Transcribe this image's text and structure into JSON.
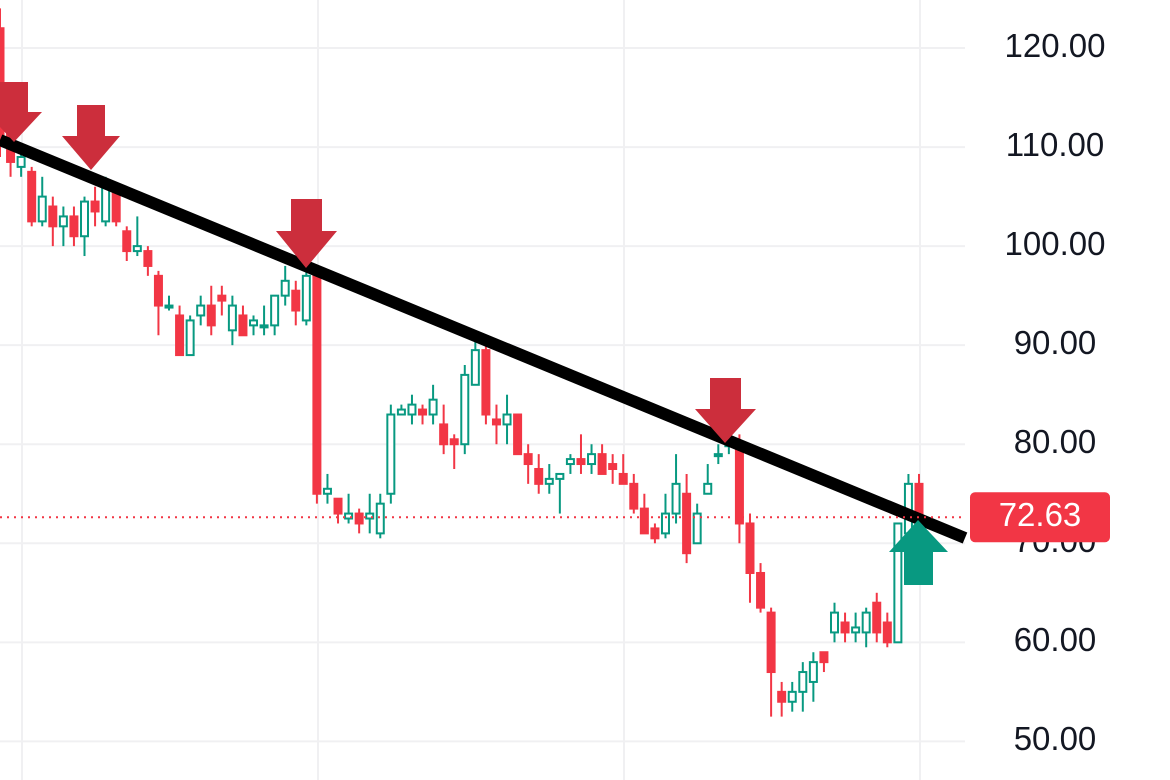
{
  "chart_data": {
    "type": "candlestick",
    "open": [
      122,
      112,
      108,
      107.5,
      102.5,
      104,
      102,
      103,
      101,
      104.5,
      102.5,
      105.5,
      101.5,
      99.5,
      99.5,
      97,
      94,
      93,
      89,
      93,
      94,
      95,
      91.5,
      93,
      92,
      92,
      92,
      95,
      95.5,
      92.5,
      97,
      75,
      74.5,
      72.5,
      73,
      72.5,
      71,
      75,
      83,
      83,
      83.5,
      83,
      82,
      80.5,
      80,
      86,
      89.5,
      82.5,
      82,
      83,
      79,
      77.5,
      76,
      76.5,
      78,
      78.5,
      78,
      79,
      78,
      77,
      76,
      73.5,
      71.5,
      71,
      73,
      75,
      70,
      75,
      79,
      80,
      80,
      72,
      67,
      63,
      55,
      54,
      55,
      56,
      59,
      61,
      62,
      61,
      61,
      64,
      62,
      60,
      71,
      76
    ],
    "high": [
      124,
      113,
      110,
      108,
      107,
      105,
      104,
      104,
      105,
      106,
      107,
      106,
      102,
      103,
      100,
      97.5,
      95,
      94,
      93,
      95,
      96,
      96,
      95,
      94,
      93,
      94,
      95,
      98,
      96.5,
      98,
      98,
      77,
      74.5,
      75,
      73.5,
      75,
      75,
      84,
      84,
      85,
      84,
      86,
      84,
      81,
      88,
      91,
      90,
      84,
      85,
      83,
      80,
      79,
      78,
      77,
      79,
      81,
      80,
      80,
      79,
      79,
      77,
      75,
      72,
      75,
      79,
      77,
      74,
      78,
      80,
      81,
      81,
      73,
      68,
      63.5,
      56,
      56,
      58,
      59,
      59,
      64,
      63,
      63,
      63.5,
      65,
      63,
      72,
      77,
      77
    ],
    "low": [
      109,
      107,
      107,
      102,
      102,
      100,
      100,
      100,
      99,
      102,
      102,
      102,
      98.5,
      99,
      97,
      91,
      93.5,
      89,
      89,
      92,
      91,
      93,
      90,
      91,
      91,
      91,
      91,
      94,
      92,
      92,
      74,
      74,
      72,
      72,
      71,
      71,
      70.5,
      74,
      83,
      82,
      82,
      82,
      79,
      77.5,
      79,
      86,
      82,
      80,
      80,
      79,
      76,
      75,
      75,
      73,
      77,
      77,
      77,
      77,
      76,
      76,
      73,
      71,
      70,
      70.5,
      72,
      68,
      70,
      75,
      78,
      79,
      70,
      64,
      63,
      52.5,
      52.5,
      53,
      53,
      54,
      57,
      60,
      60,
      60,
      59.5,
      60,
      59.5,
      60,
      70,
      72
    ],
    "close": [
      111,
      108.5,
      109,
      102.5,
      105,
      102,
      103,
      101,
      104.5,
      103.5,
      106,
      102.5,
      99.5,
      100,
      98,
      94,
      94,
      89,
      92.5,
      94,
      92,
      94.5,
      94,
      91,
      92.5,
      92,
      95,
      96.5,
      93.5,
      97,
      75,
      75.5,
      73,
      73,
      72,
      73,
      74,
      83,
      83.5,
      84,
      83,
      84.5,
      80,
      80,
      87,
      89.5,
      83,
      82,
      83,
      79,
      78,
      76,
      76.5,
      77,
      78.5,
      78,
      79,
      77,
      77.5,
      76,
      73.5,
      71,
      70.5,
      73,
      76,
      69,
      73,
      76,
      79,
      80,
      72,
      67,
      63.5,
      57,
      54,
      55,
      57,
      58,
      58,
      63,
      61,
      61.5,
      63,
      61,
      60,
      72,
      76,
      72.63
    ],
    "up_color": "#089981",
    "down_color": "#f23645",
    "last_price": 72.63,
    "ylim": [
      46.1,
      124.85
    ],
    "yticks": [
      {
        "value": 50,
        "label": "50.00"
      },
      {
        "value": 60,
        "label": "60.00"
      },
      {
        "value": 70,
        "label": "70.00"
      },
      {
        "value": 80,
        "label": "80.00"
      },
      {
        "value": 90,
        "label": "90.00"
      },
      {
        "value": 100,
        "label": "100.00"
      },
      {
        "value": 110,
        "label": "110.00"
      },
      {
        "value": 120,
        "label": "120.00"
      }
    ],
    "grid": true
  }
}
